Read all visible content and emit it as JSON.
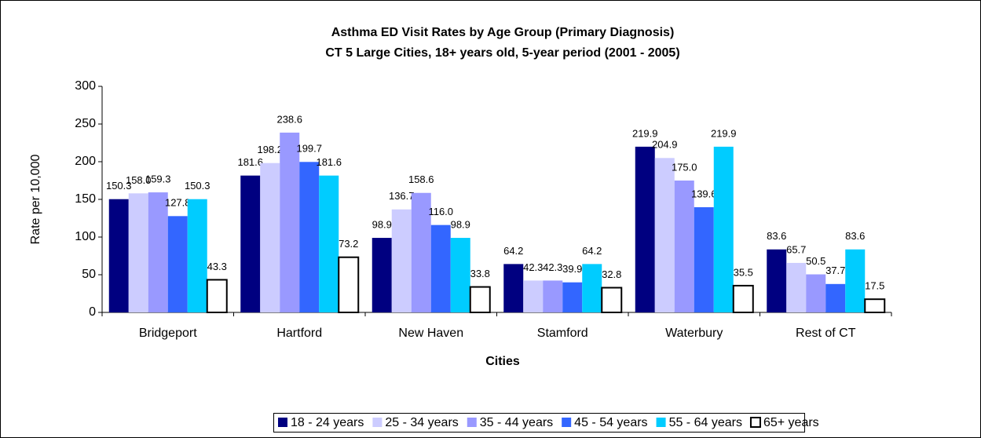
{
  "chart_data": {
    "type": "bar",
    "title": "Asthma ED Visit Rates by Age Group (Primary Diagnosis)",
    "subtitle": "CT 5 Large Cities, 18+ years old, 5-year period (2001 - 2005)",
    "x_label": "Cities",
    "y_label": "Rate per 10,000",
    "categories": [
      "Bridgeport",
      "Hartford",
      "New Haven",
      "Stamford",
      "Waterbury",
      "Rest of CT"
    ],
    "series": [
      {
        "name": "18 - 24 years",
        "color": "#000080",
        "values": [
          150.3,
          181.6,
          98.9,
          64.2,
          219.9,
          83.6
        ],
        "value_labels": [
          "150.3",
          "181.6",
          "98.9",
          "64.2",
          "219.9",
          "83.6"
        ]
      },
      {
        "name": "25 - 34 years",
        "color": "#ccccff",
        "values": [
          158.0,
          198.2,
          136.7,
          42.3,
          204.9,
          65.7
        ],
        "value_labels": [
          "158.0",
          "198.2",
          "136.7",
          "42.3",
          "204.9",
          "65.7"
        ]
      },
      {
        "name": "35 - 44 years",
        "color": "#9999ff",
        "values": [
          159.3,
          238.6,
          158.6,
          42.3,
          175.0,
          50.5
        ],
        "value_labels": [
          "159.3",
          "238.6",
          "158.6",
          "42.3",
          "175.0",
          "50.5"
        ]
      },
      {
        "name": "45 - 54 years",
        "color": "#3366ff",
        "values": [
          127.8,
          199.7,
          116.0,
          39.9,
          139.6,
          37.7
        ],
        "value_labels": [
          "127.8",
          "199.7",
          "116.0",
          "39.9",
          "139.6",
          "37.7"
        ]
      },
      {
        "name": "55 - 64 years",
        "color": "#00ccff",
        "values": [
          150.3,
          181.6,
          98.9,
          64.2,
          219.9,
          83.6
        ],
        "value_labels": [
          "150.3",
          "181.6",
          "98.9",
          "64.2",
          "219.9",
          "83.6"
        ]
      },
      {
        "name": "65+ years",
        "color": "#ffffff",
        "values": [
          43.3,
          73.2,
          33.8,
          32.8,
          35.5,
          17.5
        ],
        "value_labels": [
          "43.3",
          "73.2",
          "33.8",
          "32.8",
          "35.5",
          "17.5"
        ]
      }
    ],
    "ylim": [
      0,
      300
    ],
    "yticks": [
      0,
      50,
      100,
      150,
      200,
      250,
      300
    ],
    "grid": false,
    "legend": "bottom"
  }
}
